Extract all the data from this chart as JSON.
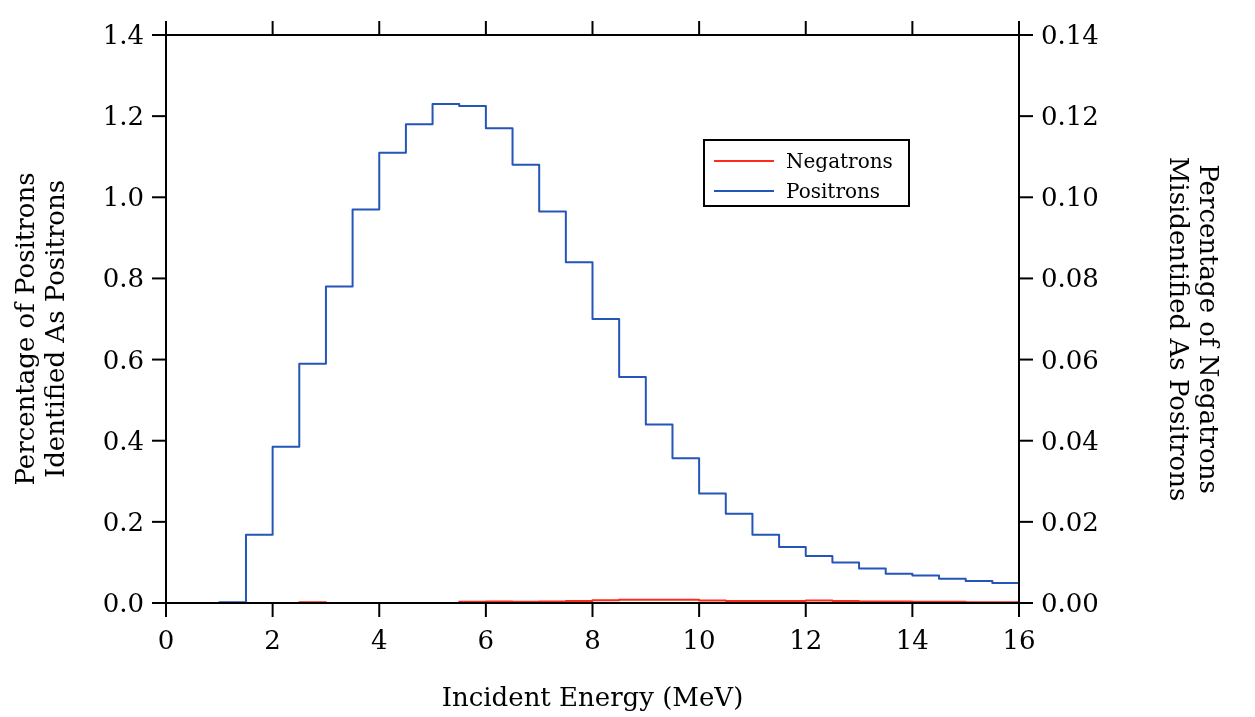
{
  "chart_data": {
    "type": "histogram",
    "xlabel": "Incident Energy (MeV)",
    "ylabel": "Percentage of Positrons\nIdentified As Positrons",
    "y2label": "Percentage of Negatrons\nMisidentified As Positrons",
    "bins": [
      0,
      0.5,
      1,
      1.5,
      2,
      2.5,
      3,
      3.5,
      4,
      4.5,
      5,
      5.5,
      6,
      6.5,
      7,
      7.5,
      8,
      8.5,
      9,
      9.5,
      10,
      10.5,
      11,
      11.5,
      12,
      12.5,
      13,
      13.5,
      14,
      14.5,
      15,
      15.5,
      16
    ],
    "series": [
      {
        "name": "Negatrons",
        "color": "#ff2a1a",
        "axis": "y2",
        "values": [
          0,
          0,
          0,
          0,
          0,
          0.0002,
          0,
          0,
          0,
          0,
          0,
          0.0003,
          0.0004,
          0.0003,
          0.0004,
          0.0005,
          0.0007,
          0.0008,
          0.0008,
          0.0008,
          0.0006,
          0.0005,
          0.0005,
          0.0005,
          0.0006,
          0.0005,
          0.0004,
          0.0004,
          0.0003,
          0.0003,
          0.0002,
          0.0002
        ]
      },
      {
        "name": "Positrons",
        "color": "#2456b8",
        "values": [
          0,
          0,
          0.002,
          0.168,
          0.385,
          0.59,
          0.78,
          0.97,
          1.11,
          1.18,
          1.23,
          1.225,
          1.17,
          1.08,
          0.965,
          0.84,
          0.7,
          0.557,
          0.44,
          0.357,
          0.27,
          0.22,
          0.168,
          0.138,
          0.116,
          0.1,
          0.085,
          0.072,
          0.068,
          0.06,
          0.054,
          0.049
        ]
      }
    ],
    "xlim": [
      0,
      16
    ],
    "xticks": [
      0,
      2,
      4,
      6,
      8,
      10,
      12,
      14,
      16
    ],
    "ylim": [
      0,
      1.4
    ],
    "yticks": [
      {
        "value": 0,
        "label": "0.0"
      },
      {
        "value": 0.2,
        "label": "0.2"
      },
      {
        "value": 0.4,
        "label": "0.4"
      },
      {
        "value": 0.6,
        "label": "0.6"
      },
      {
        "value": 0.8,
        "label": "0.8"
      },
      {
        "value": 1,
        "label": "1.0"
      },
      {
        "value": 1.2,
        "label": "1.2"
      },
      {
        "value": 1.4,
        "label": "1.4"
      }
    ],
    "y2lim": [
      0,
      0.14
    ],
    "y2ticks": [
      {
        "value": 0,
        "label": "0.00"
      },
      {
        "value": 0.02,
        "label": "0.02"
      },
      {
        "value": 0.04,
        "label": "0.04"
      },
      {
        "value": 0.06,
        "label": "0.06"
      },
      {
        "value": 0.08,
        "label": "0.08"
      },
      {
        "value": 0.1,
        "label": "0.10"
      },
      {
        "value": 0.12,
        "label": "0.12"
      },
      {
        "value": 0.14,
        "label": "0.14"
      }
    ],
    "legend": "top right",
    "grid": false
  }
}
